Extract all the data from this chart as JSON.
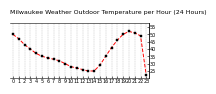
{
  "title": "Milwaukee Weather Outdoor Temperature per Hour (24 Hours)",
  "hours": [
    0,
    1,
    2,
    3,
    4,
    5,
    6,
    7,
    8,
    9,
    10,
    11,
    12,
    13,
    14,
    15,
    16,
    17,
    18,
    19,
    20,
    21,
    22,
    23
  ],
  "temps": [
    50,
    47,
    43,
    40,
    37,
    35,
    34,
    33,
    32,
    30,
    28,
    27,
    26,
    25,
    25,
    29,
    35,
    41,
    46,
    50,
    52,
    51,
    49,
    22
  ],
  "line_color": "#ff0000",
  "marker_color": "#000000",
  "bg_color": "#ffffff",
  "grid_color": "#999999",
  "ylim": [
    20,
    58
  ],
  "xlim": [
    -0.5,
    23.5
  ],
  "ytick_values": [
    25,
    30,
    35,
    40,
    45,
    50,
    55
  ],
  "xtick_values": [
    0,
    1,
    2,
    3,
    4,
    5,
    6,
    7,
    8,
    9,
    10,
    11,
    12,
    13,
    14,
    15,
    16,
    17,
    18,
    19,
    20,
    21,
    22,
    23
  ],
  "title_fontsize": 4.5,
  "tick_fontsize": 3.5,
  "line_width": 0.7,
  "marker_size": 1.8
}
